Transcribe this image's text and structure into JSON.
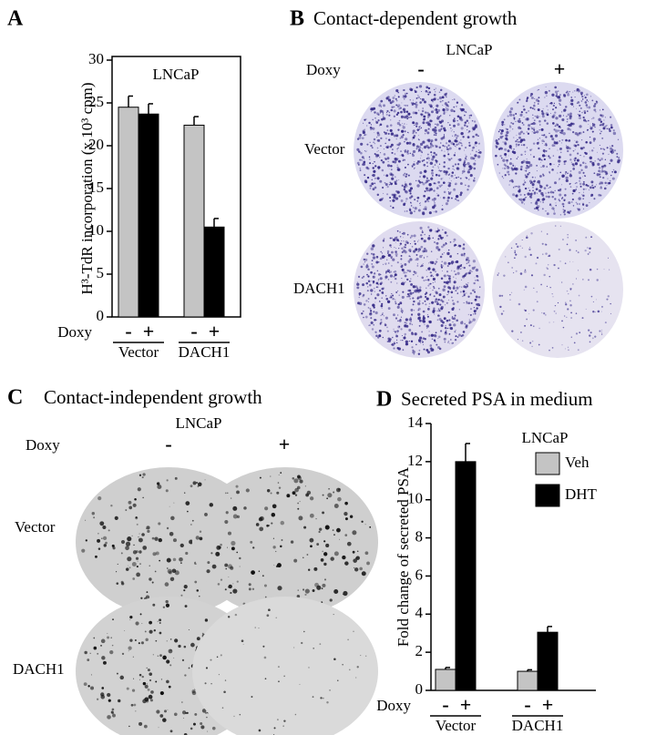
{
  "chart_data": [
    {
      "type": "bar",
      "panel_label": "A",
      "title": "LNCaP",
      "ylabel": "H³-TdR incorporation (x 10³ cpm)",
      "xlabel": "Doxy",
      "sublabels": [
        "-",
        "+"
      ],
      "categories": [
        "Vector",
        "DACH1"
      ],
      "series": [
        {
          "color": "#c4c4c4",
          "values": [
            24.5,
            22.4
          ],
          "errors": [
            1.3,
            1.0
          ]
        },
        {
          "color": "#000000",
          "values": [
            23.7,
            10.5
          ],
          "errors": [
            1.2,
            1.0
          ]
        }
      ],
      "ylim": [
        0,
        30
      ],
      "yticks": [
        0,
        5,
        10,
        15,
        20,
        25,
        30
      ],
      "frame": true
    },
    {
      "type": "bar",
      "panel_label": "D",
      "title": "Secreted PSA in medium",
      "ylabel": "Fold change of  secreted PSA",
      "xlabel": "Doxy",
      "sublabels": [
        "-",
        "+"
      ],
      "categories": [
        "Vector",
        "DACH1"
      ],
      "legend_title": "LNCaP",
      "series": [
        {
          "name": "Veh",
          "color": "#c4c4c4",
          "values": [
            1.1,
            1.0
          ],
          "errors": [
            0.1,
            0.08
          ]
        },
        {
          "name": "DHT",
          "color": "#000000",
          "values": [
            12.0,
            3.05
          ],
          "errors": [
            0.95,
            0.3
          ]
        }
      ],
      "ylim": [
        0,
        14
      ],
      "yticks": [
        0,
        2,
        4,
        6,
        8,
        10,
        12,
        14
      ],
      "frame": false
    }
  ],
  "panel_b": {
    "panel_label": "B",
    "title": "Contact-dependent growth",
    "cell_line": "LNCaP",
    "doxy": "Doxy",
    "columns": [
      "-",
      "+"
    ],
    "rows": [
      "Vector",
      "DACH1"
    ]
  },
  "panel_c": {
    "panel_label": "C",
    "title": "Contact-independent growth",
    "cell_line": "LNCaP",
    "doxy": "Doxy",
    "columns": [
      "-",
      "+"
    ],
    "rows": [
      "Vector",
      "DACH1"
    ]
  }
}
